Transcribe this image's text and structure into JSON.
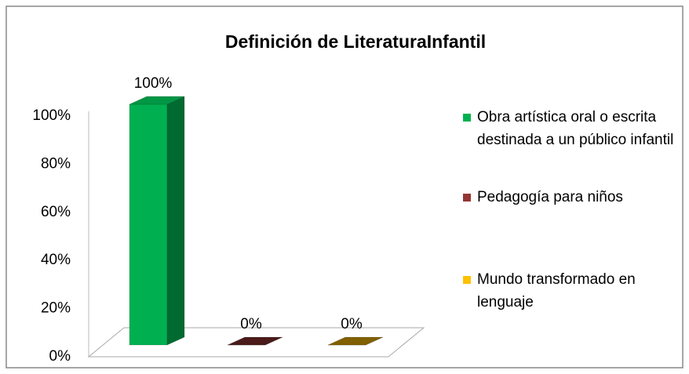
{
  "chart_data": {
    "type": "bar3d",
    "title": "Definición de LiteraturaInfantil",
    "categories": [
      null
    ],
    "series": [
      {
        "name": "Obra artística oral o escrita destinada a un público infantil",
        "color": "#00b050",
        "values": [
          100
        ],
        "value_labels": [
          "100%"
        ]
      },
      {
        "name": "Pedagogía para niños",
        "color": "#943634",
        "values": [
          0
        ],
        "value_labels": [
          "0%"
        ]
      },
      {
        "name": "Mundo transformado en lenguaje",
        "color": "#ffc000",
        "values": [
          0
        ],
        "value_labels": [
          "0%"
        ]
      }
    ],
    "ylim": [
      0,
      100
    ],
    "yticks": [
      {
        "value": 0,
        "label": "0%"
      },
      {
        "value": 20,
        "label": "20%"
      },
      {
        "value": 40,
        "label": "40%"
      },
      {
        "value": 60,
        "label": "60%"
      },
      {
        "value": 80,
        "label": "80%"
      },
      {
        "value": 100,
        "label": "100%"
      }
    ],
    "legend": "right"
  }
}
